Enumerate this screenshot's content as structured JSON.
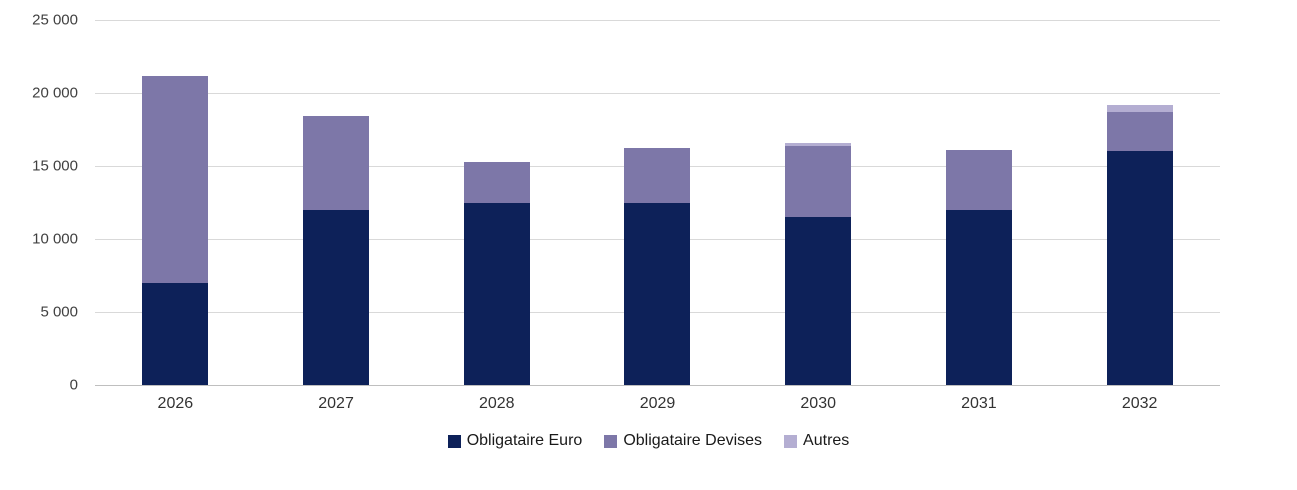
{
  "chart_data": {
    "type": "bar",
    "stacked": true,
    "title": "",
    "xlabel": "",
    "ylabel": "",
    "categories": [
      "2026",
      "2027",
      "2028",
      "2029",
      "2030",
      "2031",
      "2032"
    ],
    "series": [
      {
        "name": "Obligataire Euro",
        "color": "#0d2159",
        "values": [
          7000,
          12000,
          12500,
          12500,
          11500,
          12000,
          16000
        ]
      },
      {
        "name": "Obligataire Devises",
        "color": "#7d77a8",
        "values": [
          14200,
          6400,
          2800,
          3700,
          4900,
          4100,
          2700
        ]
      },
      {
        "name": "Autres",
        "color": "#b4aed2",
        "values": [
          0,
          0,
          0,
          0,
          150,
          0,
          450
        ]
      }
    ],
    "ylim": [
      0,
      25000
    ],
    "ytick_step": 5000,
    "ytick_labels": [
      "0",
      "5 000",
      "10 000",
      "15 000",
      "20 000",
      "25 000"
    ],
    "grid": "horizontal",
    "gridline_color": "#d9d9d9",
    "legend_position": "bottom",
    "legend_labels": [
      "Obligataire Euro",
      "Obligataire Devises",
      "Autres"
    ]
  }
}
